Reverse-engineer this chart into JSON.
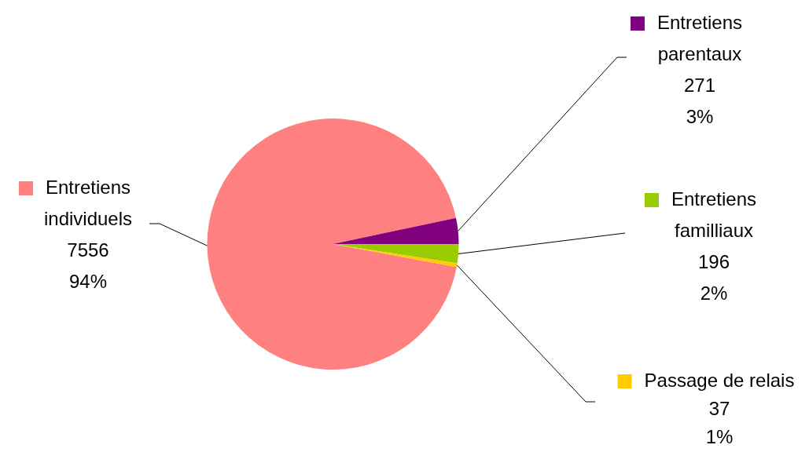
{
  "chart_data": {
    "type": "pie",
    "categories": [
      "Entretiens individuels",
      "Entretiens parentaux",
      "Entretiens familliaux",
      "Passage de relais"
    ],
    "values": [
      7556,
      271,
      196,
      37
    ],
    "colors": [
      "#ff8080",
      "#800080",
      "#99cc00",
      "#ffcc00"
    ],
    "value_labels": [
      "7556\n94%",
      "271\n3%",
      "196\n2%",
      "37\n1%"
    ],
    "legend": "right"
  }
}
